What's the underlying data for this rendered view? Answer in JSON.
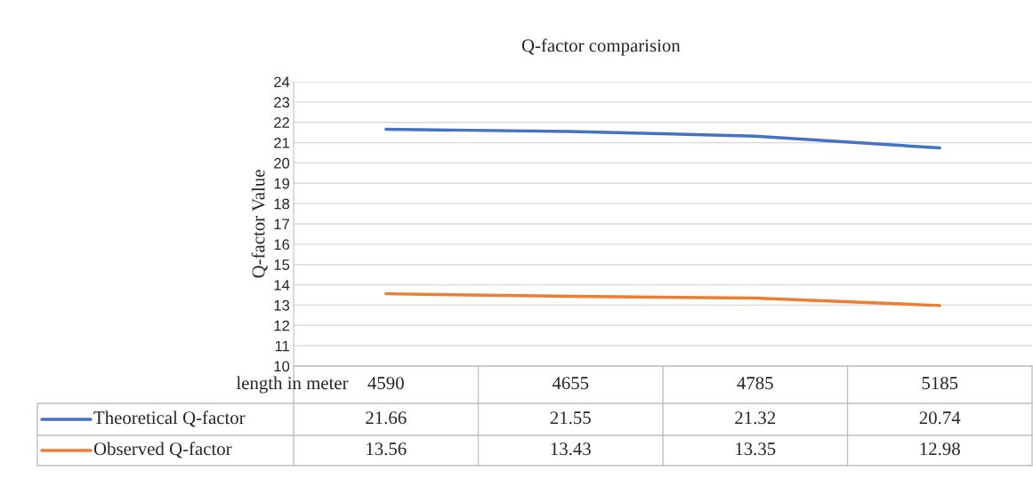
{
  "chart_data": {
    "type": "line",
    "title": "Q-factor comparision",
    "xlabel": "length in meter",
    "ylabel": "Q-factor Value",
    "categories": [
      "4590",
      "4655",
      "4785",
      "5185"
    ],
    "series": [
      {
        "name": "Theoretical Q-factor",
        "color": "#4472c4",
        "values": [
          21.66,
          21.55,
          21.32,
          20.74
        ]
      },
      {
        "name": "Observed Q-factor",
        "color": "#ed7d31",
        "values": [
          13.56,
          13.43,
          13.35,
          12.98
        ]
      }
    ],
    "ylim": [
      10,
      24
    ],
    "yticks": [
      10,
      11,
      12,
      13,
      14,
      15,
      16,
      17,
      18,
      19,
      20,
      21,
      22,
      23,
      24
    ],
    "grid": "y",
    "legend": "bottom",
    "data_labels": true,
    "marker": "none",
    "line_style": "solid"
  }
}
